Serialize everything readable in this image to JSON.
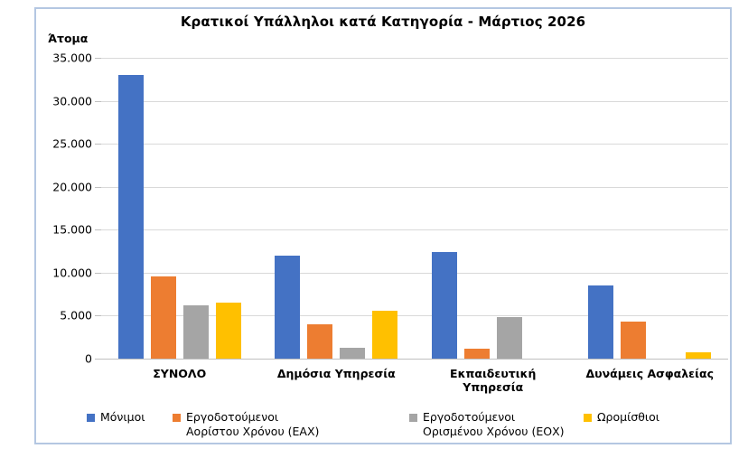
{
  "chart_data": {
    "type": "bar",
    "title": "Κρατικοί Υπάλληλοι κατά Κατηγορία - Μάρτιος 2026",
    "y_axis_title": "Άτομα",
    "categories": [
      "ΣΥΝΟΛΟ",
      "Δημόσια Υπηρεσία",
      "Εκπαιδευτική Υπηρεσία",
      "Δυνάμεις Ασφαλείας"
    ],
    "category_label_lines": [
      [
        "ΣΥΝΟΛΟ"
      ],
      [
        "Δημόσια Υπηρεσία"
      ],
      [
        "Εκπαιδευτική",
        "Υπηρεσία"
      ],
      [
        "Δυνάμεις Ασφαλείας"
      ]
    ],
    "series": [
      {
        "name": "Μόνιμοι",
        "legend_lines": [
          "Μόνιμοι"
        ],
        "color": "#4472C4",
        "values": [
          33000,
          11950,
          12450,
          8500
        ]
      },
      {
        "name": "Εργοδοτούμενοι Αορίστου Χρόνου (ΕΑΧ)",
        "legend_lines": [
          "Εργοδοτούμενοι",
          "Αορίστου Χρόνου (ΕΑΧ)"
        ],
        "color": "#ED7D31",
        "values": [
          9600,
          4000,
          1150,
          4300
        ]
      },
      {
        "name": "Εργοδοτούμενοι Ορισμένου Χρόνου (ΕΟΧ)",
        "legend_lines": [
          "Εργοδοτούμενοι",
          "Ορισμένου Χρόνου (ΕΟΧ)"
        ],
        "color": "#A5A5A5",
        "values": [
          6200,
          1300,
          4850,
          0
        ]
      },
      {
        "name": "Ωρομίσθιοι",
        "legend_lines": [
          "Ωρομίσθιοι"
        ],
        "color": "#FFC000",
        "values": [
          6500,
          5600,
          0,
          750
        ]
      }
    ],
    "y_ticks": [
      "0",
      "5.000",
      "10.000",
      "15.000",
      "20.000",
      "25.000",
      "30.000",
      "35.000"
    ],
    "ylim": [
      0,
      35000
    ],
    "grid": true,
    "legend_position": "bottom",
    "colors": {
      "grid": "#d9d9d9",
      "axis": "#bfbfbf",
      "frame_border": "#b4c7e2",
      "background": "#ffffff"
    }
  }
}
